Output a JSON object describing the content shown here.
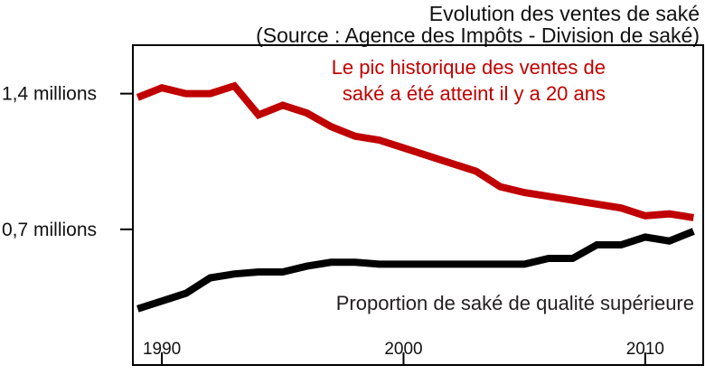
{
  "chart_data": {
    "type": "line",
    "title": "Evolution des ventes de saké",
    "subtitle": "(Source : Agence des Impôts - Division de saké)",
    "x": [
      1989,
      1990,
      1991,
      1992,
      1993,
      1994,
      1995,
      1996,
      1997,
      1998,
      1999,
      2000,
      2001,
      2002,
      2003,
      2004,
      2005,
      2006,
      2007,
      2008,
      2009,
      2010,
      2011,
      2012
    ],
    "xlim": [
      1988.8,
      2012.4
    ],
    "ylim": [
      0,
      1.65
    ],
    "yticks": [
      {
        "value": 0.7,
        "label": "0,7 millions"
      },
      {
        "value": 1.4,
        "label": "1,4 millions"
      }
    ],
    "xticks": [
      {
        "value": 1990,
        "label": "1990"
      },
      {
        "value": 2000,
        "label": "2000"
      },
      {
        "value": 2010,
        "label": "2010"
      }
    ],
    "series": [
      {
        "color": "#c00000",
        "values": [
          1.38,
          1.43,
          1.4,
          1.4,
          1.44,
          1.29,
          1.34,
          1.3,
          1.23,
          1.18,
          1.16,
          1.12,
          1.08,
          1.04,
          1.0,
          0.92,
          0.89,
          0.87,
          0.85,
          0.83,
          0.81,
          0.77,
          0.78,
          0.76
        ]
      },
      {
        "color": "#000000",
        "values": [
          0.29,
          0.33,
          0.37,
          0.45,
          0.47,
          0.48,
          0.48,
          0.51,
          0.53,
          0.53,
          0.52,
          0.52,
          0.52,
          0.52,
          0.52,
          0.52,
          0.52,
          0.55,
          0.55,
          0.62,
          0.62,
          0.66,
          0.64,
          0.69
        ]
      }
    ],
    "annotations": [
      {
        "color": "#c00000",
        "lines": [
          "Le pic historique des ventes de",
          "saké a été atteint il y a 20 ans"
        ]
      },
      {
        "color": "#231f20",
        "lines": [
          "Proportion de saké de qualité supérieure"
        ]
      }
    ],
    "grid": false,
    "legend": "none"
  }
}
